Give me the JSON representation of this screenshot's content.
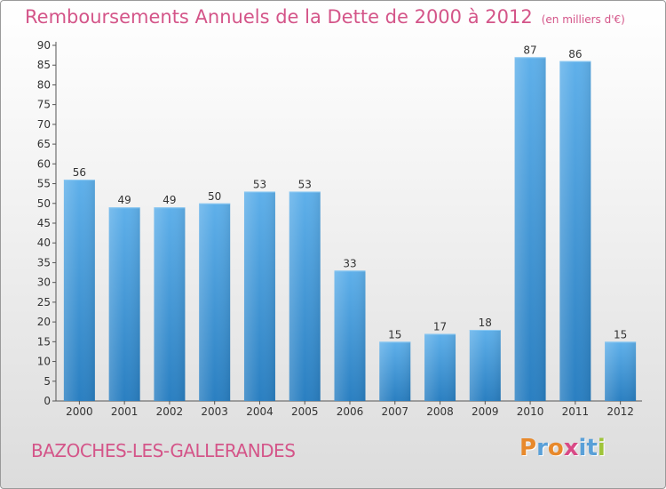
{
  "header": {
    "title": "Remboursements Annuels de la Dette de 2000 à 2012",
    "unit": "(en milliers d'€)"
  },
  "footer": {
    "commune": "BAZOCHES-LES-GALLERANDES",
    "logo_letters": [
      "P",
      "r",
      "o",
      "x",
      "i",
      "t",
      "i"
    ],
    "logo_colors": [
      "#e8892b",
      "#5aa0d8",
      "#e8892b",
      "#d94a86",
      "#5aa0d8",
      "#5aa0d8",
      "#9fc43a"
    ]
  },
  "chart_data": {
    "type": "bar",
    "title": "Remboursements Annuels de la Dette de 2000 à 2012",
    "categories": [
      "2000",
      "2001",
      "2002",
      "2003",
      "2004",
      "2005",
      "2006",
      "2007",
      "2008",
      "2009",
      "2010",
      "2011",
      "2012"
    ],
    "values": [
      56,
      49,
      49,
      50,
      53,
      53,
      33,
      15,
      17,
      18,
      87,
      86,
      15
    ],
    "ylim": [
      0,
      90
    ],
    "yticks": [
      0,
      5,
      10,
      15,
      20,
      25,
      30,
      35,
      40,
      45,
      50,
      55,
      60,
      65,
      70,
      75,
      80,
      85,
      90
    ],
    "grid": false,
    "bar_color": "#4a9fde",
    "xlabel": "",
    "ylabel": ""
  }
}
